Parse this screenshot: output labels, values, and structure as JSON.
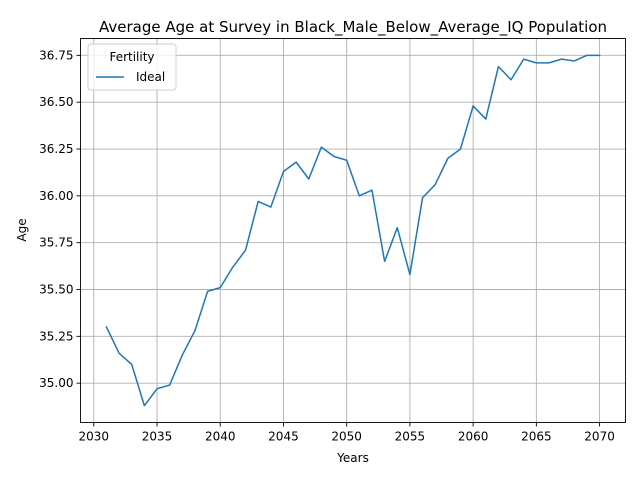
{
  "chart_data": {
    "type": "line",
    "title": "Average Age at Survey in Black_Male_Below_Average_IQ Population",
    "xlabel": "Years",
    "ylabel": "Age",
    "xlim": [
      2028.95,
      2072.05
    ],
    "ylim": [
      34.79,
      36.84
    ],
    "x_ticks": [
      2030,
      2035,
      2040,
      2045,
      2050,
      2055,
      2060,
      2065,
      2070
    ],
    "y_ticks": [
      35.0,
      35.25,
      35.5,
      35.75,
      36.0,
      36.25,
      36.5,
      36.75
    ],
    "y_tick_labels": [
      "35.00",
      "35.25",
      "35.50",
      "35.75",
      "36.00",
      "36.25",
      "36.50",
      "36.75"
    ],
    "grid": true,
    "legend": {
      "title": "Fertility",
      "placement": "top-left"
    },
    "series": [
      {
        "name": "Ideal",
        "color": "#1f77b4",
        "x": [
          2031,
          2032,
          2033,
          2034,
          2035,
          2036,
          2037,
          2038,
          2039,
          2040,
          2041,
          2042,
          2043,
          2044,
          2045,
          2046,
          2047,
          2048,
          2049,
          2050,
          2051,
          2052,
          2053,
          2054,
          2055,
          2056,
          2057,
          2058,
          2059,
          2060,
          2061,
          2062,
          2063,
          2064,
          2065,
          2066,
          2067,
          2068,
          2069,
          2070
        ],
        "y": [
          35.3,
          35.16,
          35.1,
          34.88,
          34.97,
          34.99,
          35.15,
          35.28,
          35.49,
          35.51,
          35.62,
          35.71,
          35.97,
          35.94,
          36.13,
          36.18,
          36.09,
          36.26,
          36.21,
          36.19,
          36.0,
          36.03,
          35.65,
          35.83,
          35.58,
          35.99,
          36.06,
          36.2,
          36.25,
          36.48,
          36.41,
          36.69,
          36.62,
          36.73,
          36.71,
          36.71,
          36.73,
          36.72,
          36.75,
          36.75
        ]
      }
    ]
  }
}
